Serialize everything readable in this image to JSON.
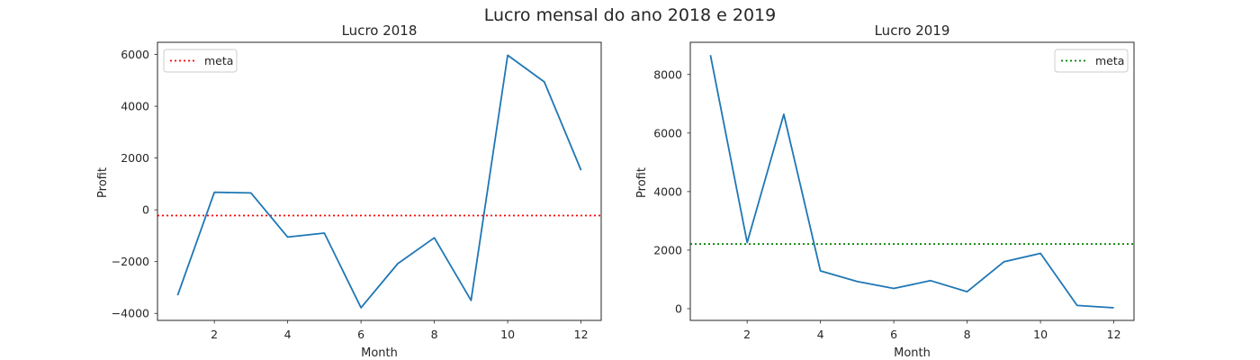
{
  "figure": {
    "suptitle": "Lucro mensal do ano 2018 e 2019"
  },
  "chart_data": [
    {
      "type": "line",
      "title": "Lucro 2018",
      "xlabel": "Month",
      "ylabel": "Profit",
      "x": [
        1,
        2,
        3,
        4,
        5,
        6,
        7,
        8,
        9,
        10,
        11,
        12
      ],
      "series": [
        {
          "values": [
            -3300,
            680,
            650,
            -1050,
            -900,
            -3780,
            -2080,
            -1080,
            -3500,
            5970,
            4940,
            1530
          ],
          "color": "#1f77b4"
        }
      ],
      "reference_line": {
        "name": "meta",
        "y": -220,
        "color": "#ff0000",
        "style": "dotted"
      },
      "xlim": [
        0.45,
        12.55
      ],
      "ylim": [
        -4270,
        6470
      ],
      "xticks": [
        2,
        4,
        6,
        8,
        10,
        12
      ],
      "yticks": [
        -4000,
        -2000,
        0,
        2000,
        4000,
        6000
      ],
      "ytick_labels": [
        "−4000",
        "−2000",
        "0",
        "2000",
        "4000",
        "6000"
      ],
      "legend": {
        "placement": "upper left",
        "entries": [
          "meta"
        ]
      },
      "grid": false
    },
    {
      "type": "line",
      "title": "Lucro 2019",
      "xlabel": "Month",
      "ylabel": "Profit",
      "x": [
        1,
        2,
        3,
        4,
        5,
        6,
        7,
        8,
        9,
        10,
        11,
        12
      ],
      "series": [
        {
          "values": [
            8660,
            2260,
            6640,
            1290,
            930,
            690,
            960,
            580,
            1600,
            1890,
            110,
            30
          ],
          "color": "#1f77b4"
        }
      ],
      "reference_line": {
        "name": "meta",
        "y": 2210,
        "color": "#008000",
        "style": "dotted"
      },
      "xlim": [
        0.45,
        12.55
      ],
      "ylim": [
        -400,
        9100
      ],
      "xticks": [
        2,
        4,
        6,
        8,
        10,
        12
      ],
      "yticks": [
        0,
        2000,
        4000,
        6000,
        8000
      ],
      "ytick_labels": [
        "0",
        "2000",
        "4000",
        "6000",
        "8000"
      ],
      "legend": {
        "placement": "upper right",
        "entries": [
          "meta"
        ]
      },
      "grid": false
    }
  ]
}
